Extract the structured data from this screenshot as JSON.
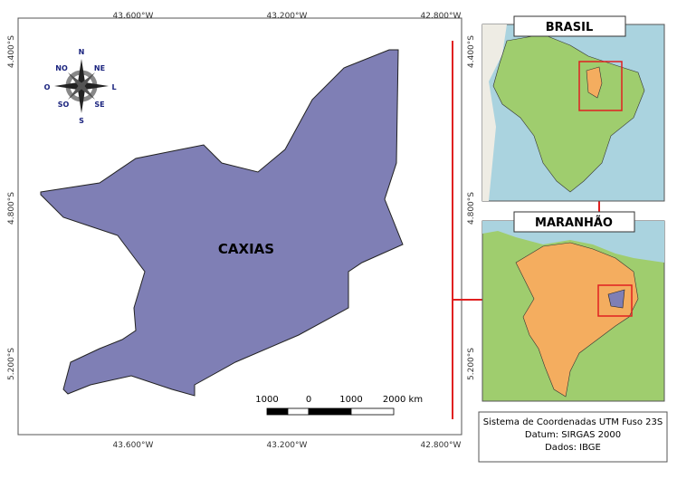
{
  "main_map": {
    "label": "CAXIAS",
    "top_coords": [
      "43.600°W",
      "43.200°W",
      "42.800°W"
    ],
    "bottom_coords": [
      "43.600°W",
      "43.200°W",
      "42.800°W"
    ],
    "left_coords": [
      "4.400°S",
      "4.800°S",
      "5.200°S"
    ],
    "right_coords": [
      "4.400°S",
      "4.800°S",
      "5.200°S"
    ],
    "compass": {
      "n": "N",
      "s": "S",
      "w": "O",
      "e": "L",
      "nw": "NO",
      "ne": "NE",
      "sw": "SO",
      "se": "SE"
    },
    "scale_labels": [
      "1000",
      "0",
      "1000",
      "2000 km"
    ]
  },
  "insets": [
    {
      "title": "BRASIL"
    },
    {
      "title": "MARANHÃO"
    }
  ],
  "info": [
    "Sistema de Coordenadas UTM Fuso 23S",
    "Datum: SIRGAS 2000",
    "Dados: IBGE"
  ]
}
